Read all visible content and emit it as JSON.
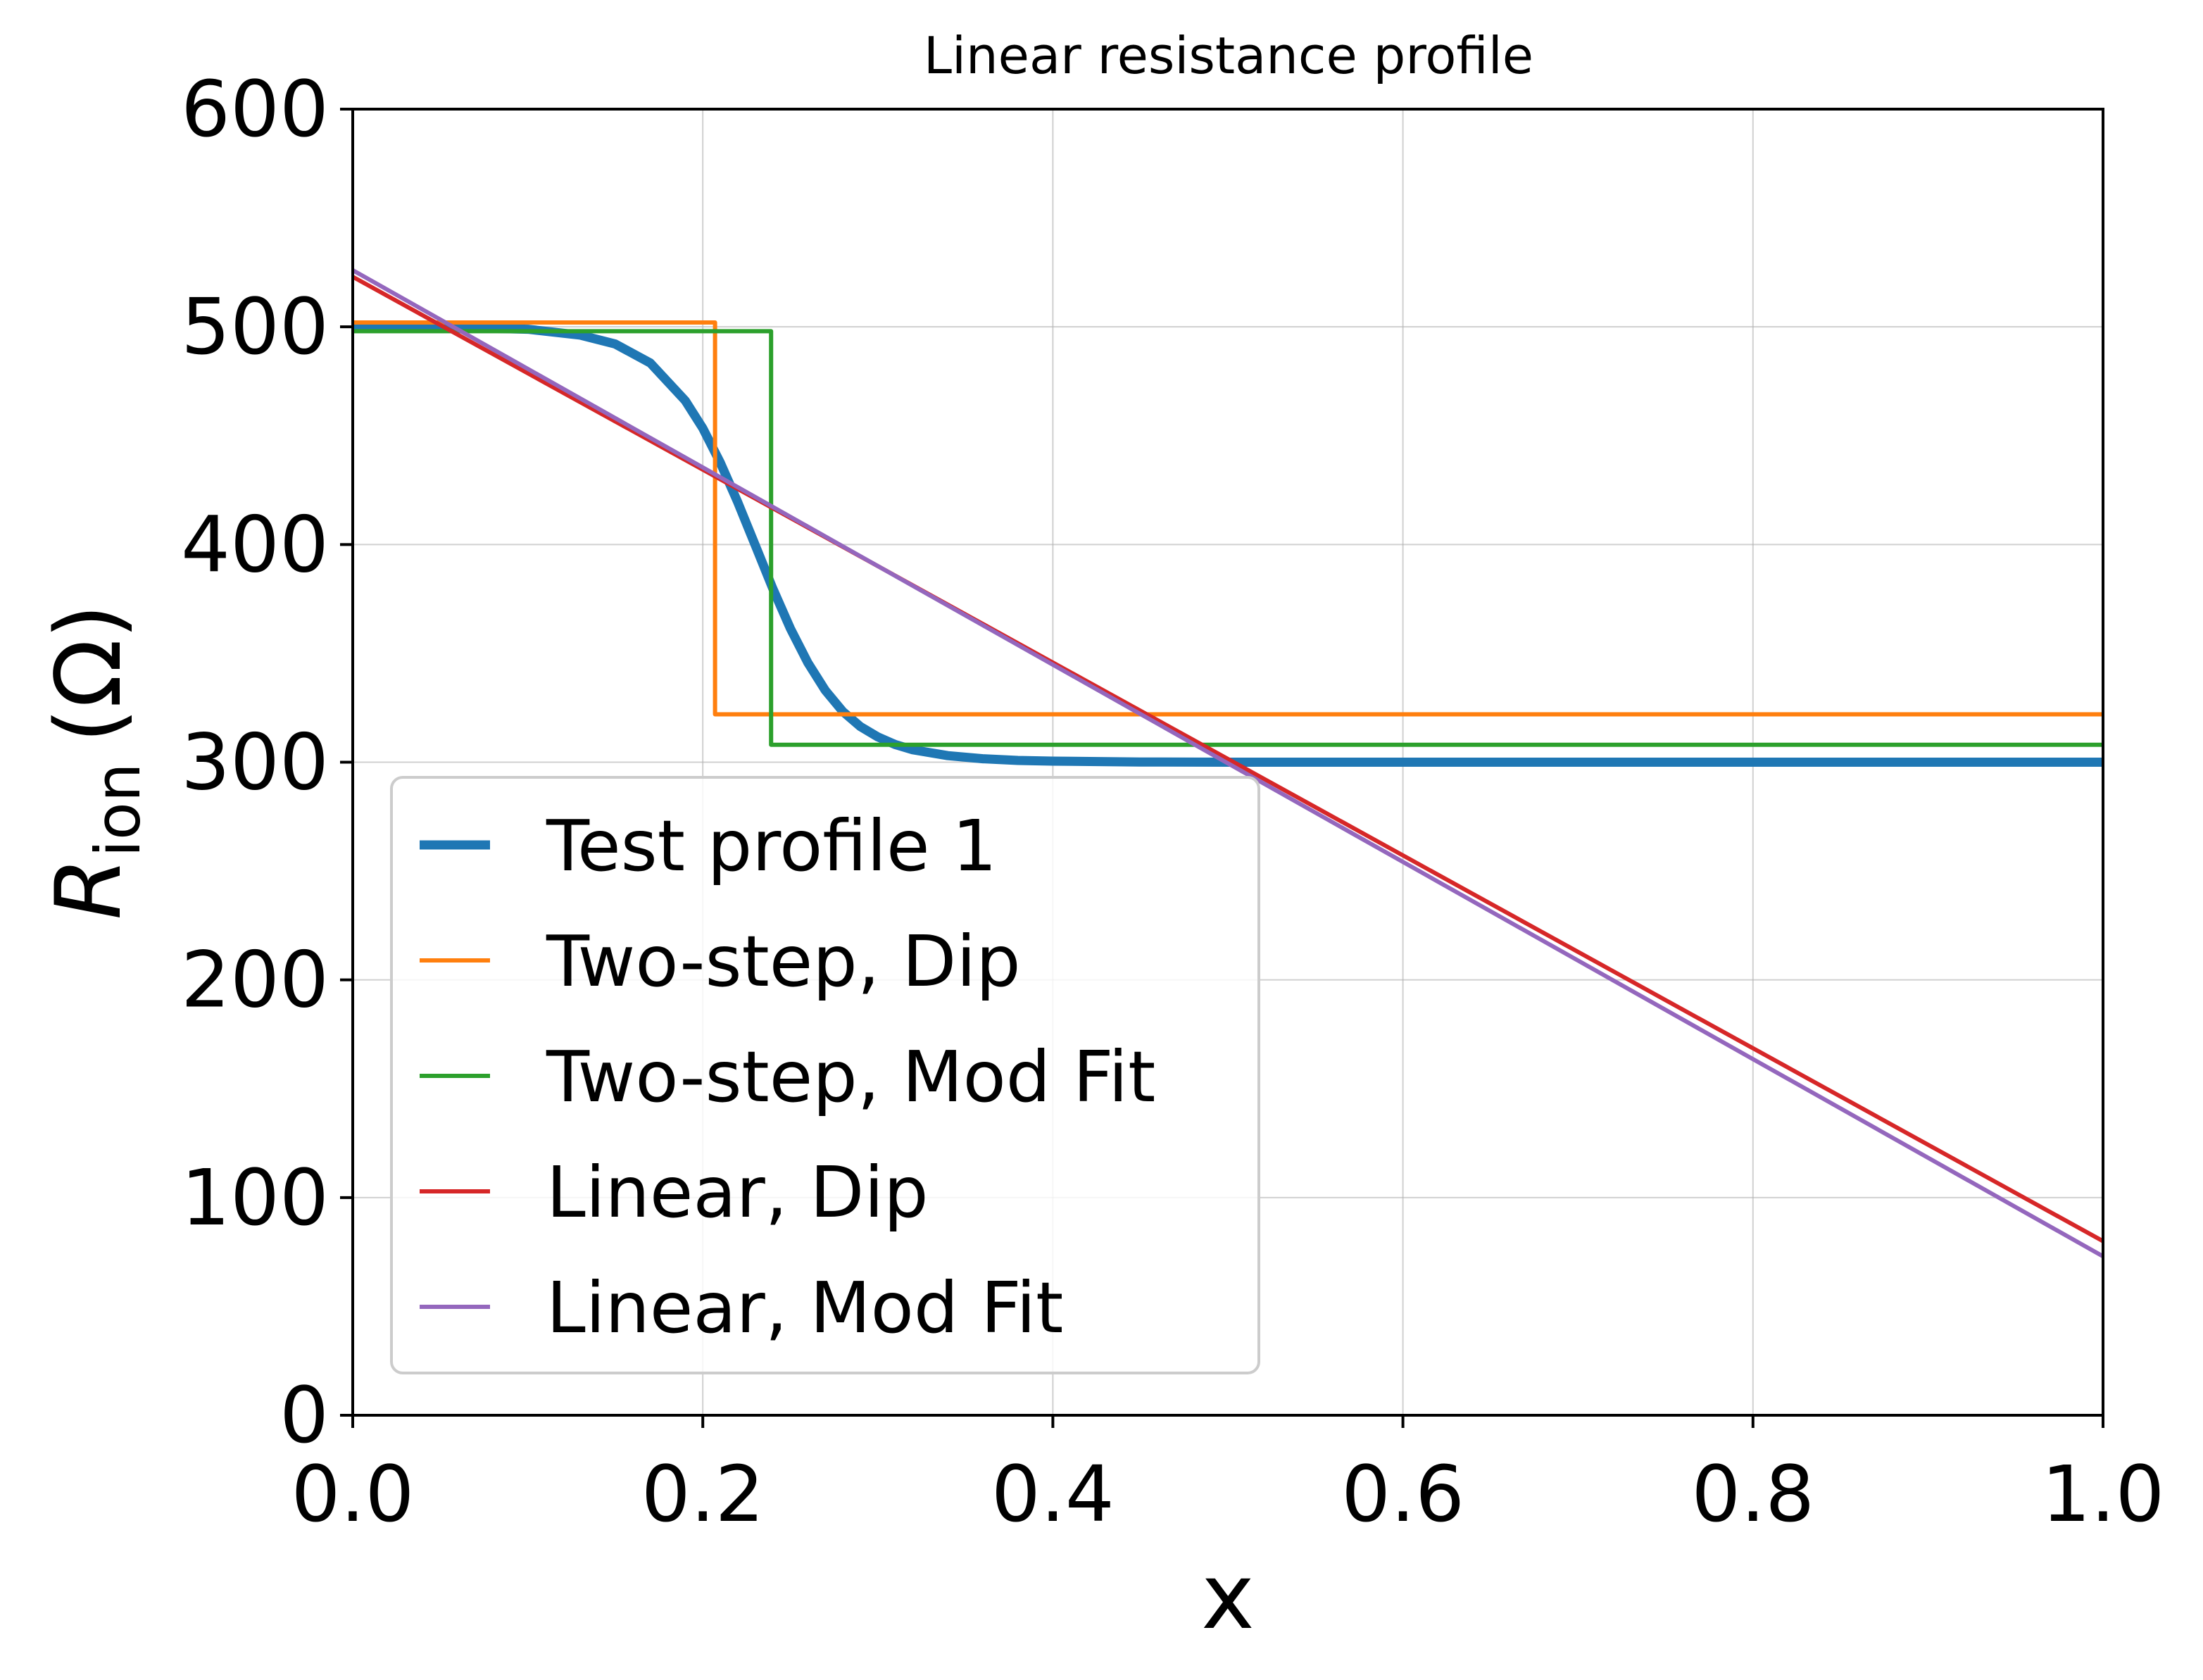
{
  "chart_data": {
    "type": "line",
    "title": "Linear resistance profile",
    "xlabel": "x",
    "ylabel_main": "R",
    "ylabel_sub": "ion",
    "ylabel_unit": "(Ω)",
    "xlim": [
      0.0,
      1.0
    ],
    "ylim": [
      0,
      600
    ],
    "xticks": [
      0.0,
      0.2,
      0.4,
      0.6,
      0.8,
      1.0
    ],
    "xtick_labels": [
      "0.0",
      "0.2",
      "0.4",
      "0.6",
      "0.8",
      "1.0"
    ],
    "yticks": [
      0,
      100,
      200,
      300,
      400,
      500,
      600
    ],
    "ytick_labels": [
      "0",
      "100",
      "200",
      "300",
      "400",
      "500",
      "600"
    ],
    "grid": true,
    "legend_position": "lower-left",
    "series": [
      {
        "name": "Test profile 1",
        "color": "#1f77b4",
        "width": "thick",
        "x": [
          0.0,
          0.05,
          0.1,
          0.13,
          0.15,
          0.17,
          0.19,
          0.2,
          0.21,
          0.22,
          0.23,
          0.24,
          0.25,
          0.26,
          0.27,
          0.28,
          0.29,
          0.3,
          0.31,
          0.32,
          0.34,
          0.36,
          0.38,
          0.4,
          0.45,
          0.5,
          0.6,
          0.8,
          1.0
        ],
        "y": [
          500,
          499.9,
          498.9,
          496.2,
          492.1,
          483.4,
          466.1,
          453.4,
          437.6,
          419.4,
          399.6,
          379.8,
          361.5,
          345.7,
          333.0,
          323.3,
          316.4,
          311.6,
          308.1,
          305.7,
          303.0,
          301.6,
          300.8,
          300.5,
          300.1,
          300.0,
          300.0,
          300.0,
          300.0
        ]
      },
      {
        "name": "Two-step, Dip",
        "color": "#ff7f0e",
        "width": "normal",
        "x": [
          0.0,
          0.207,
          0.207,
          1.0
        ],
        "y": [
          502,
          502,
          322,
          322
        ]
      },
      {
        "name": "Two-step, Mod Fit",
        "color": "#2ca02c",
        "width": "normal",
        "x": [
          0.0,
          0.239,
          0.239,
          1.0
        ],
        "y": [
          498,
          498,
          308,
          308
        ]
      },
      {
        "name": "Linear, Dip",
        "color": "#d62728",
        "width": "normal",
        "x": [
          0.0,
          1.0
        ],
        "y": [
          523,
          80
        ]
      },
      {
        "name": "Linear, Mod Fit",
        "color": "#9467bd",
        "width": "normal",
        "x": [
          0.0,
          1.0
        ],
        "y": [
          526,
          73
        ]
      }
    ]
  }
}
